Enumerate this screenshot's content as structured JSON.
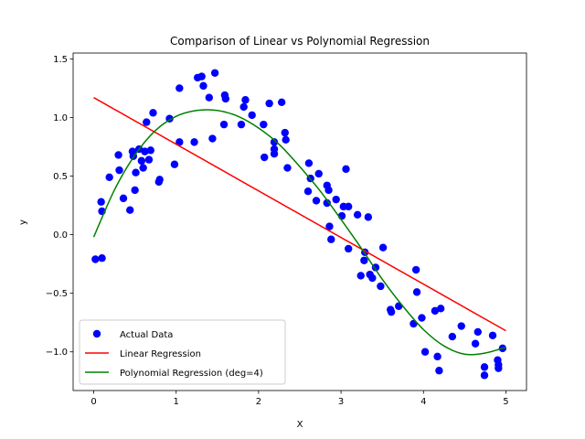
{
  "chart_data": {
    "type": "scatter",
    "title": "Comparison of Linear vs Polynomial Regression",
    "xlabel": "X",
    "ylabel": "y",
    "xlim": [
      -0.25,
      5.25
    ],
    "ylim": [
      -1.33,
      1.55
    ],
    "xticks": [
      0,
      1,
      2,
      3,
      4,
      5
    ],
    "yticks": [
      -1.0,
      -0.5,
      0.0,
      0.5,
      1.0,
      1.5
    ],
    "xtick_labels": [
      "0",
      "1",
      "2",
      "3",
      "4",
      "5"
    ],
    "ytick_labels": [
      "−1.0",
      "−0.5",
      "0.0",
      "0.5",
      "1.0",
      "1.5"
    ],
    "grid": false,
    "legend_position": "lower-left",
    "series": [
      {
        "name": "Actual Data",
        "kind": "scatter",
        "color": "#0000ff",
        "points": [
          [
            0.02,
            -0.21
          ],
          [
            0.1,
            -0.2
          ],
          [
            0.09,
            0.28
          ],
          [
            0.1,
            0.2
          ],
          [
            0.19,
            0.49
          ],
          [
            0.3,
            0.68
          ],
          [
            0.31,
            0.55
          ],
          [
            0.36,
            0.31
          ],
          [
            0.44,
            0.21
          ],
          [
            0.47,
            0.71
          ],
          [
            0.48,
            0.67
          ],
          [
            0.5,
            0.38
          ],
          [
            0.51,
            0.53
          ],
          [
            0.55,
            0.73
          ],
          [
            0.58,
            0.63
          ],
          [
            0.6,
            0.57
          ],
          [
            0.62,
            0.71
          ],
          [
            0.64,
            0.96
          ],
          [
            0.67,
            0.64
          ],
          [
            0.69,
            0.72
          ],
          [
            0.72,
            1.04
          ],
          [
            0.79,
            0.45
          ],
          [
            0.8,
            0.47
          ],
          [
            0.92,
            0.99
          ],
          [
            0.98,
            0.6
          ],
          [
            1.04,
            1.25
          ],
          [
            1.04,
            0.79
          ],
          [
            1.22,
            0.79
          ],
          [
            1.26,
            1.34
          ],
          [
            1.31,
            1.35
          ],
          [
            1.33,
            1.27
          ],
          [
            1.4,
            1.17
          ],
          [
            1.44,
            0.82
          ],
          [
            1.47,
            1.38
          ],
          [
            1.58,
            0.94
          ],
          [
            1.59,
            1.19
          ],
          [
            1.6,
            1.16
          ],
          [
            1.79,
            0.94
          ],
          [
            1.82,
            1.09
          ],
          [
            1.84,
            1.15
          ],
          [
            1.92,
            1.02
          ],
          [
            2.06,
            0.94
          ],
          [
            2.07,
            0.66
          ],
          [
            2.13,
            1.12
          ],
          [
            2.19,
            0.79
          ],
          [
            2.19,
            0.69
          ],
          [
            2.19,
            0.73
          ],
          [
            2.28,
            1.13
          ],
          [
            2.32,
            0.87
          ],
          [
            2.33,
            0.81
          ],
          [
            2.35,
            0.57
          ],
          [
            2.6,
            0.37
          ],
          [
            2.61,
            0.61
          ],
          [
            2.63,
            0.48
          ],
          [
            2.7,
            0.29
          ],
          [
            2.73,
            0.52
          ],
          [
            2.83,
            0.42
          ],
          [
            2.83,
            0.27
          ],
          [
            2.85,
            0.38
          ],
          [
            2.86,
            0.07
          ],
          [
            2.88,
            -0.04
          ],
          [
            2.94,
            0.3
          ],
          [
            3.01,
            0.16
          ],
          [
            3.03,
            0.24
          ],
          [
            3.06,
            0.56
          ],
          [
            3.09,
            -0.12
          ],
          [
            3.09,
            0.24
          ],
          [
            3.2,
            0.17
          ],
          [
            3.24,
            -0.35
          ],
          [
            3.28,
            -0.22
          ],
          [
            3.29,
            -0.15
          ],
          [
            3.33,
            0.15
          ],
          [
            3.35,
            -0.34
          ],
          [
            3.38,
            -0.37
          ],
          [
            3.42,
            -0.28
          ],
          [
            3.48,
            -0.44
          ],
          [
            3.51,
            -0.11
          ],
          [
            3.6,
            -0.64
          ],
          [
            3.61,
            -0.66
          ],
          [
            3.7,
            -0.61
          ],
          [
            3.88,
            -0.76
          ],
          [
            3.91,
            -0.3
          ],
          [
            3.92,
            -0.49
          ],
          [
            3.98,
            -0.71
          ],
          [
            4.02,
            -1.0
          ],
          [
            4.14,
            -0.65
          ],
          [
            4.17,
            -1.04
          ],
          [
            4.19,
            -1.16
          ],
          [
            4.21,
            -0.63
          ],
          [
            4.35,
            -0.87
          ],
          [
            4.46,
            -0.78
          ],
          [
            4.63,
            -0.93
          ],
          [
            4.66,
            -0.83
          ],
          [
            4.74,
            -1.2
          ],
          [
            4.74,
            -1.13
          ],
          [
            4.84,
            -0.86
          ],
          [
            4.9,
            -1.07
          ],
          [
            4.91,
            -1.14
          ],
          [
            4.91,
            -1.11
          ],
          [
            4.96,
            -0.97
          ]
        ]
      },
      {
        "name": "Linear Regression",
        "kind": "line",
        "color": "#ff0000",
        "points": [
          [
            0,
            1.17
          ],
          [
            5,
            -0.82
          ]
        ]
      },
      {
        "name": "Polynomial Regression (deg=4)",
        "kind": "line",
        "color": "#008000",
        "points": [
          [
            0.0,
            -0.02
          ],
          [
            0.25,
            0.38
          ],
          [
            0.5,
            0.68
          ],
          [
            0.75,
            0.89
          ],
          [
            1.0,
            1.01
          ],
          [
            1.25,
            1.06
          ],
          [
            1.5,
            1.06
          ],
          [
            1.75,
            1.01
          ],
          [
            2.0,
            0.91
          ],
          [
            2.25,
            0.77
          ],
          [
            2.5,
            0.58
          ],
          [
            2.75,
            0.37
          ],
          [
            3.0,
            0.13
          ],
          [
            3.25,
            -0.12
          ],
          [
            3.5,
            -0.38
          ],
          [
            3.75,
            -0.61
          ],
          [
            4.0,
            -0.81
          ],
          [
            4.25,
            -0.95
          ],
          [
            4.5,
            -1.02
          ],
          [
            4.75,
            -1.01
          ],
          [
            5.0,
            -0.96
          ]
        ]
      }
    ]
  }
}
